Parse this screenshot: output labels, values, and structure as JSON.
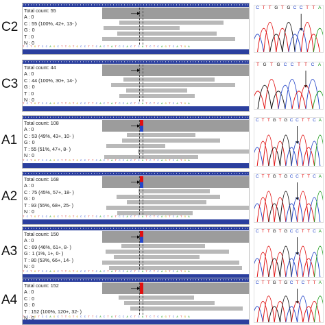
{
  "panels": [
    {
      "id": "C2",
      "label": "C2",
      "total": "Total count: 55",
      "a": "A : 0",
      "c": "C : 55 (100%, 42+, 13- )",
      "g": "G : 0",
      "t": "T : 0",
      "n": "N : 0",
      "variant": false,
      "trace_bases": "CTTGTGCCTTA"
    },
    {
      "id": "C3",
      "label": "C3",
      "total": "Total count: 44",
      "a": "A : 0",
      "c": "C : 44 (100%, 30+, 14- )",
      "g": "G : 0",
      "t": "T : 0",
      "n": "N : 0",
      "variant": false,
      "trace_bases": "TGTGCCTTCA"
    },
    {
      "id": "A1",
      "label": "A1",
      "total": "Total count: 108",
      "a": "A : 0",
      "c": "C : 53 (49%, 43+, 10- )",
      "g": "G : 0",
      "t": "T : 55 (51%, 47+, 8- )",
      "n": "N : 0",
      "variant": true,
      "trace_bases": "CTTGTGCCTTCA"
    },
    {
      "id": "A2",
      "label": "A2",
      "total": "Total count: 168",
      "a": "A : 0",
      "c": "C : 75 (45%, 57+, 18- )",
      "g": "G : 0",
      "t": "T : 93 (55%, 68+, 25- )",
      "n": "N : 0",
      "variant": true,
      "trace_bases": "CTTGTGCCTTCA"
    },
    {
      "id": "A3",
      "label": "A3",
      "total": "Total count: 150",
      "a": "A : 0",
      "c": "C : 69 (46%, 61+, 8- )",
      "g": "G : 1 (1%, 1+, 0- )",
      "t": "T : 80 (53%, 66+, 14- )",
      "n": "N : 0",
      "variant": true,
      "trace_bases": "CTTGTGCCTTCA"
    },
    {
      "id": "A4",
      "label": "A4",
      "total": "Total count: 152",
      "a": "A : 0",
      "c": "C : 0",
      "g": "G : 0",
      "t": "T : 152 (100%, 120+, 32- )",
      "n": "N : 0",
      "variant": true,
      "trace_bases": "CTTGTGCTCTTA"
    }
  ],
  "reference_sequence": "TCTGTCCAGCTTGTGCCTTCACTATCCACTCATCTCAGTCATGA",
  "colors": {
    "igv_bar": "#2b3f9e",
    "read": "#b9b9b9",
    "coverage": "#9c9c9c",
    "snp_c": "#2546c8",
    "snp_t": "#e01010",
    "trace_a": "#1a9a1a",
    "trace_c": "#2546c8",
    "trace_g": "#111111",
    "trace_t": "#e01010"
  }
}
